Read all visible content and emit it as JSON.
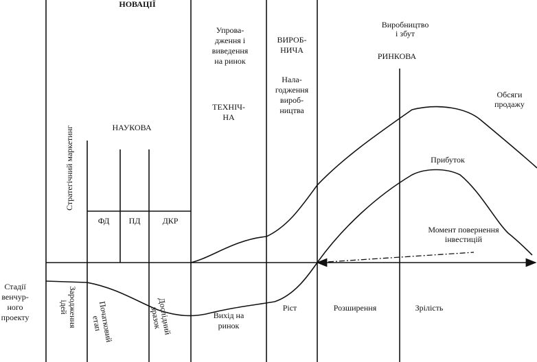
{
  "labels": {
    "innovations": [
      "НОВАЦІЇ"
    ],
    "introduction": [
      "Упрова-",
      "дження і",
      "виведення",
      "на ринок"
    ],
    "production_type": [
      "ВИРОБ-",
      "НИЧА"
    ],
    "production_sales": [
      "Виробництво",
      "і збут"
    ],
    "market_type": [
      "РИНКОВА"
    ],
    "setup": [
      "Нала-",
      "годження",
      "вироб-",
      "ництва"
    ],
    "technical_type": [
      "ТЕХНІЧ-",
      "НА"
    ],
    "sales_volume": [
      "Обсяги",
      "продажу"
    ],
    "scientific_type": [
      "НАУКОВА"
    ],
    "strategic_marketing": [
      "Стратегічний маркетинг"
    ],
    "profit": [
      "Прибуток"
    ],
    "fd": [
      "ФД"
    ],
    "pd": [
      "ПД"
    ],
    "dkr": [
      "ДКР"
    ],
    "payback": [
      "Момент повернення",
      "інвестицій"
    ],
    "stages": [
      "Стадії",
      "венчур-",
      "ного",
      "проекту"
    ],
    "origin": [
      "Зародження",
      "ідей"
    ],
    "initial": [
      "Початковий",
      "етап"
    ],
    "prototype": [
      "Дослідний",
      "зразок"
    ],
    "market_entry": [
      "Вихід на",
      "ринок"
    ],
    "growth": [
      "Ріст"
    ],
    "expansion": [
      "Розширення"
    ],
    "maturity": [
      "Зрілість"
    ]
  }
}
